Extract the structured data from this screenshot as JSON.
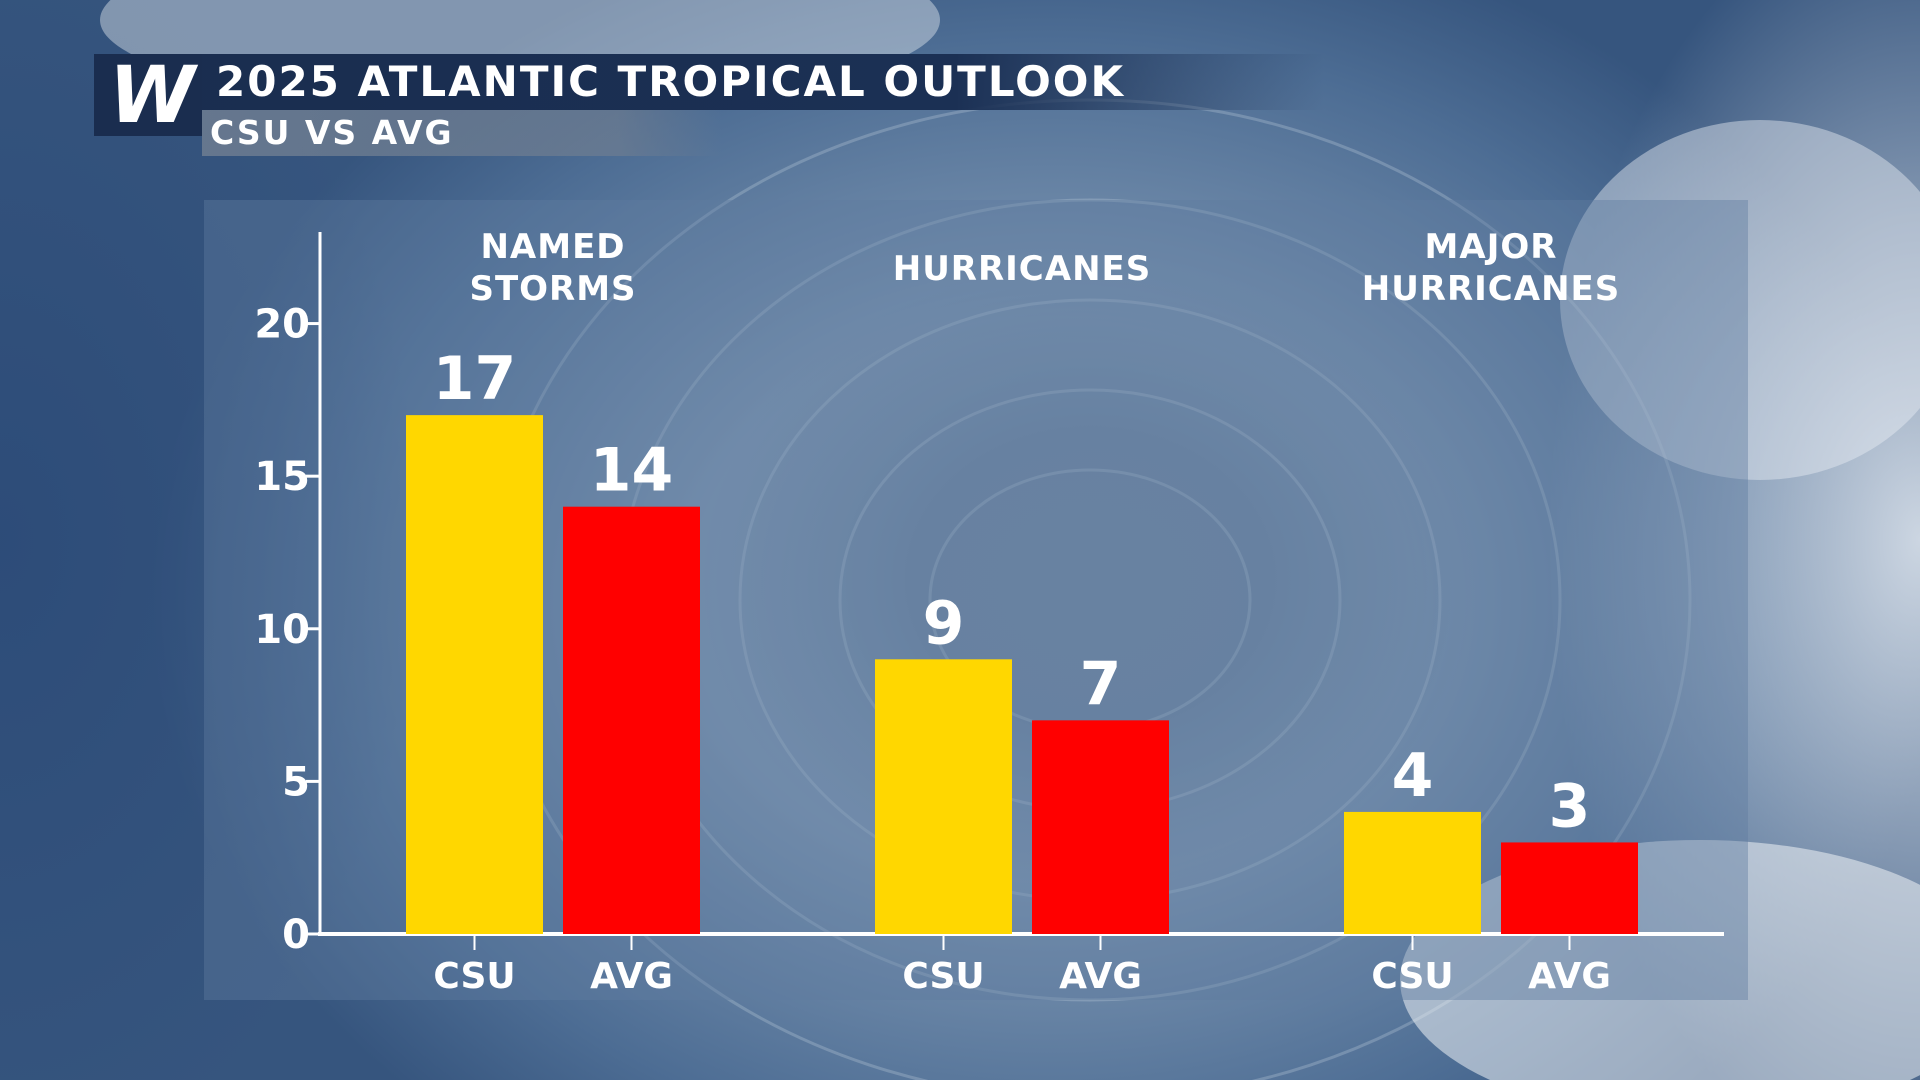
{
  "header": {
    "logo_text": "W",
    "title": "2025 ATLANTIC TROPICAL OUTLOOK",
    "subtitle": "CSU VS AVG"
  },
  "colors": {
    "csu": "#ffd700",
    "avg": "#ff0000",
    "header_bg": "#1a2d4f"
  },
  "chart_data": {
    "type": "bar",
    "title": "2025 ATLANTIC TROPICAL OUTLOOK",
    "subtitle": "CSU VS AVG",
    "categories": [
      "NAMED STORMS",
      "HURRICANES",
      "MAJOR HURRICANES"
    ],
    "category_label_lines": [
      [
        "NAMED",
        "STORMS"
      ],
      [
        "HURRICANES"
      ],
      [
        "MAJOR",
        "HURRICANES"
      ]
    ],
    "series": [
      {
        "name": "CSU",
        "values": [
          17,
          9,
          4
        ],
        "color": "#ffd700"
      },
      {
        "name": "AVG",
        "values": [
          14,
          7,
          3
        ],
        "color": "#ff0000"
      }
    ],
    "bar_labels": [
      "CSU",
      "AVG"
    ],
    "ylim": [
      0,
      23
    ],
    "yticks": [
      "0",
      "5",
      "10",
      "15",
      "20"
    ],
    "ytick_values": [
      0,
      5,
      10,
      15,
      20
    ],
    "xlabel": "",
    "ylabel": "",
    "grid": false,
    "legend": "none"
  }
}
